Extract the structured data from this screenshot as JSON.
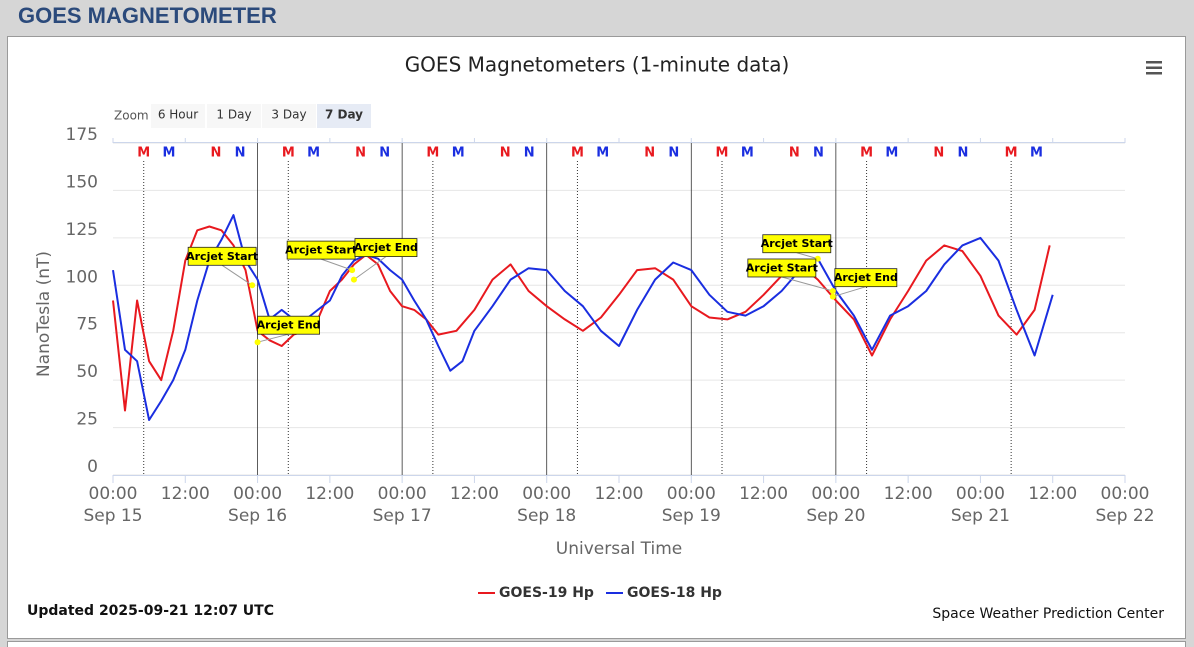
{
  "header": {
    "title": "GOES MAGNETOMETER"
  },
  "zoom": {
    "label": "Zoom",
    "buttons": [
      "6 Hour",
      "1 Day",
      "3 Day",
      "7 Day"
    ],
    "selected": 3
  },
  "chart_data": {
    "type": "line",
    "title": "GOES Magnetometers (1-minute data)",
    "xlabel": "Universal Time",
    "ylabel": "NanoTesla (nT)",
    "xlim": [
      0,
      168
    ],
    "xticks": [
      {
        "value": 0,
        "label": "00:00 Sep 15"
      },
      {
        "value": 12,
        "label": "12:00"
      },
      {
        "value": 24,
        "label": "00:00 Sep 16"
      },
      {
        "value": 36,
        "label": "12:00"
      },
      {
        "value": 48,
        "label": "00:00 Sep 17"
      },
      {
        "value": 60,
        "label": "12:00"
      },
      {
        "value": 72,
        "label": "00:00 Sep 18"
      },
      {
        "value": 84,
        "label": "12:00"
      },
      {
        "value": 96,
        "label": "00:00 Sep 19"
      },
      {
        "value": 108,
        "label": "12:00"
      },
      {
        "value": 120,
        "label": "00:00 Sep 20"
      },
      {
        "value": 132,
        "label": "12:00"
      },
      {
        "value": 144,
        "label": "00:00 Sep 21"
      },
      {
        "value": 156,
        "label": "12:00"
      },
      {
        "value": 168,
        "label": "00:00 Sep 22"
      }
    ],
    "ylim": [
      0,
      175
    ],
    "yticks": [
      0,
      25,
      50,
      75,
      100,
      125,
      150,
      175
    ],
    "grid": true,
    "legend": "bottom",
    "series": [
      {
        "name": "GOES-19 Hp",
        "color": "#e8191f",
        "x": [
          0,
          2,
          4,
          6,
          8,
          10,
          12,
          14,
          16,
          18,
          20,
          22,
          24,
          26,
          28,
          30,
          32,
          34,
          36,
          38,
          40,
          42,
          44,
          46,
          48,
          50,
          52,
          54,
          57,
          60,
          63,
          66,
          69,
          72,
          75,
          78,
          81,
          84,
          87,
          90,
          93,
          96,
          99,
          102,
          105,
          108,
          111,
          114,
          117,
          120,
          123,
          126,
          129,
          132,
          135,
          138,
          141,
          144,
          147,
          150,
          153,
          155.5
        ],
        "values": [
          92,
          34,
          92,
          60,
          50,
          76,
          113,
          129,
          131,
          129,
          121,
          108,
          76,
          71,
          68,
          74,
          76,
          82,
          97,
          103,
          111,
          116,
          111,
          97,
          89,
          87,
          82,
          74,
          76,
          87,
          103,
          111,
          97,
          89,
          82,
          76,
          83,
          95,
          108,
          109,
          103,
          89,
          83,
          82,
          86,
          95,
          105,
          111,
          103,
          92,
          82,
          63,
          82,
          97,
          113,
          121,
          118,
          105,
          84,
          74,
          87,
          121
        ]
      },
      {
        "name": "GOES-18 Hp",
        "color": "#1a2ee0",
        "x": [
          0,
          2,
          4,
          6,
          8,
          10,
          12,
          14,
          16,
          18,
          20,
          22,
          24,
          26,
          28,
          30,
          32,
          34,
          36,
          38,
          40,
          42,
          44,
          46,
          48,
          50,
          52,
          54,
          56,
          58,
          60,
          63,
          66,
          69,
          72,
          75,
          78,
          81,
          84,
          87,
          90,
          93,
          96,
          99,
          102,
          105,
          108,
          111,
          114,
          117,
          120,
          123,
          126,
          129,
          132,
          135,
          138,
          141,
          144,
          147,
          150,
          153,
          156
        ],
        "values": [
          108,
          66,
          60,
          29,
          39,
          50,
          66,
          92,
          113,
          124,
          137,
          113,
          103,
          82,
          87,
          82,
          82,
          87,
          92,
          105,
          113,
          116,
          114,
          108,
          103,
          92,
          82,
          68,
          55,
          60,
          76,
          89,
          103,
          109,
          108,
          97,
          89,
          76,
          68,
          87,
          103,
          112,
          108,
          95,
          86,
          84,
          89,
          97,
          108,
          114,
          97,
          84,
          66,
          84,
          89,
          97,
          111,
          121,
          125,
          113,
          87,
          63,
          95
        ]
      }
    ],
    "orbit_markers": [
      {
        "label": "M",
        "color": "#e8191f",
        "dotted": true,
        "x": [
          5.1,
          29.1,
          53.1,
          77.1,
          101.1,
          125.1,
          149.1
        ]
      },
      {
        "label": "M",
        "color": "#1a2ee0",
        "x": [
          9.3,
          33.3,
          57.3,
          81.3,
          105.3,
          129.3,
          153.3
        ]
      },
      {
        "label": "N",
        "color": "#e8191f",
        "x": [
          17.1,
          41.1,
          65.1,
          89.1,
          113.1,
          137.1
        ]
      },
      {
        "label": "N",
        "color": "#1a2ee0",
        "x": [
          21.1,
          45.1,
          69.1,
          93.1,
          117.1,
          141.1
        ]
      }
    ],
    "day_lines": [
      24,
      48,
      72,
      96,
      120
    ],
    "annotations": [
      {
        "text": "Arcjet Start",
        "x": 23.1,
        "y": 100
      },
      {
        "text": "Arcjet End",
        "x": 24,
        "y": 70
      },
      {
        "text": "Arcjet Start",
        "x": 39.7,
        "y": 108
      },
      {
        "text": "Arcjet End",
        "x": 40,
        "y": 103
      },
      {
        "text": "Arcjet Start",
        "x": 117,
        "y": 114
      },
      {
        "text": "Arcjet Start",
        "x": 119.5,
        "y": 97
      },
      {
        "text": "Arcjet End",
        "x": 119.5,
        "y": 94
      }
    ]
  },
  "footer": {
    "updated": "Updated 2025-09-21 12:07 UTC",
    "credit": "Space Weather Prediction Center"
  }
}
